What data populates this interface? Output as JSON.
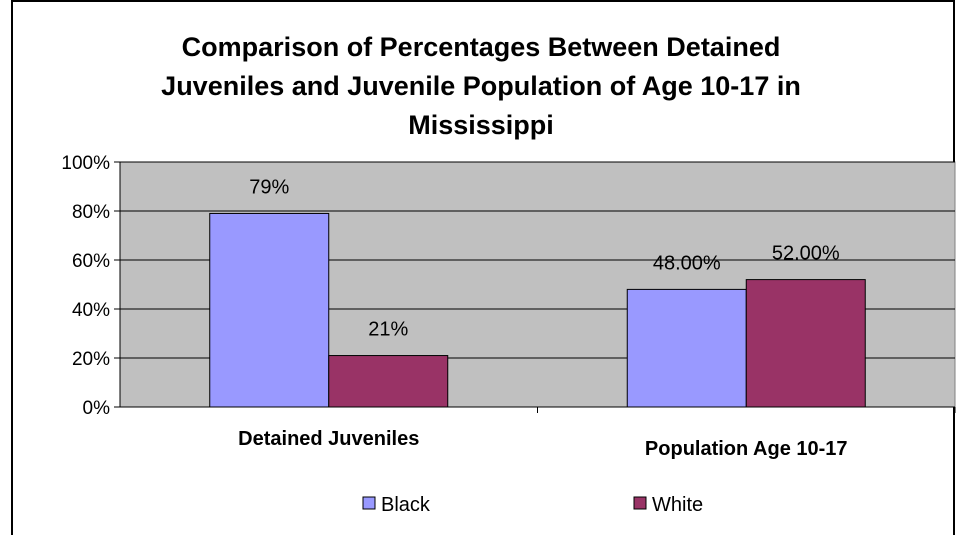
{
  "chart_data": {
    "type": "bar",
    "title_lines": [
      "Comparison of Percentages Between Detained",
      "Juveniles and Juvenile Population of Age 10-17 in",
      "Mississippi"
    ],
    "categories": [
      "Detained Juveniles",
      "Population Age 10-17"
    ],
    "series": [
      {
        "name": "Black",
        "values": [
          79,
          48
        ],
        "labels": [
          "79%",
          "48.00%"
        ],
        "color": "#9999ff"
      },
      {
        "name": "White",
        "values": [
          21,
          52
        ],
        "labels": [
          "21%",
          "52.00%"
        ],
        "color": "#993366"
      }
    ],
    "y_ticks": [
      "0%",
      "20%",
      "40%",
      "60%",
      "80%",
      "100%"
    ],
    "ylim": [
      0,
      100
    ],
    "grid": true,
    "plot_background": "#c0c0c0",
    "legend_position": "bottom"
  }
}
